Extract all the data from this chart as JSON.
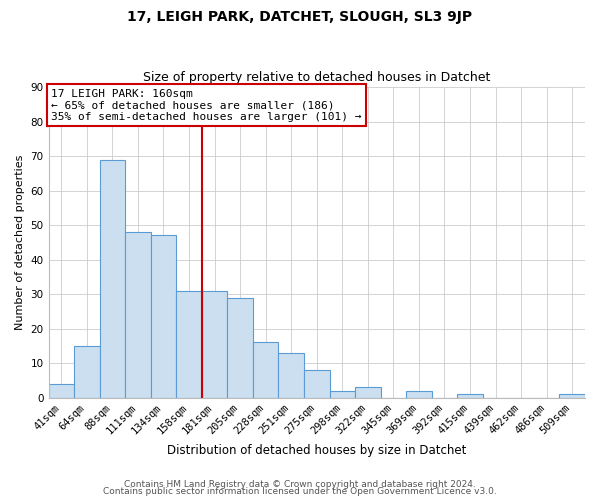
{
  "title": "17, LEIGH PARK, DATCHET, SLOUGH, SL3 9JP",
  "subtitle": "Size of property relative to detached houses in Datchet",
  "xlabel": "Distribution of detached houses by size in Datchet",
  "ylabel": "Number of detached properties",
  "footer_line1": "Contains HM Land Registry data © Crown copyright and database right 2024.",
  "footer_line2": "Contains public sector information licensed under the Open Government Licence v3.0.",
  "categories": [
    "41sqm",
    "64sqm",
    "88sqm",
    "111sqm",
    "134sqm",
    "158sqm",
    "181sqm",
    "205sqm",
    "228sqm",
    "251sqm",
    "275sqm",
    "298sqm",
    "322sqm",
    "345sqm",
    "369sqm",
    "392sqm",
    "415sqm",
    "439sqm",
    "462sqm",
    "486sqm",
    "509sqm"
  ],
  "values": [
    4,
    15,
    69,
    48,
    47,
    31,
    31,
    29,
    16,
    13,
    8,
    2,
    3,
    0,
    2,
    0,
    1,
    0,
    0,
    0,
    1
  ],
  "bar_color": "#ccdff0",
  "bar_edge_color": "#5b9bd5",
  "vline_x": 5.5,
  "vline_color": "#cc0000",
  "annotation_line1": "17 LEIGH PARK: 160sqm",
  "annotation_line2": "← 65% of detached houses are smaller (186)",
  "annotation_line3": "35% of semi-detached houses are larger (101) →",
  "annot_box_color": "#cc0000",
  "ylim": [
    0,
    90
  ],
  "yticks": [
    0,
    10,
    20,
    30,
    40,
    50,
    60,
    70,
    80,
    90
  ],
  "background_color": "#ffffff",
  "grid_color": "#cccccc",
  "title_fontsize": 10,
  "subtitle_fontsize": 9,
  "ylabel_fontsize": 8,
  "xlabel_fontsize": 8.5,
  "tick_fontsize": 7.5,
  "footer_fontsize": 6.5
}
